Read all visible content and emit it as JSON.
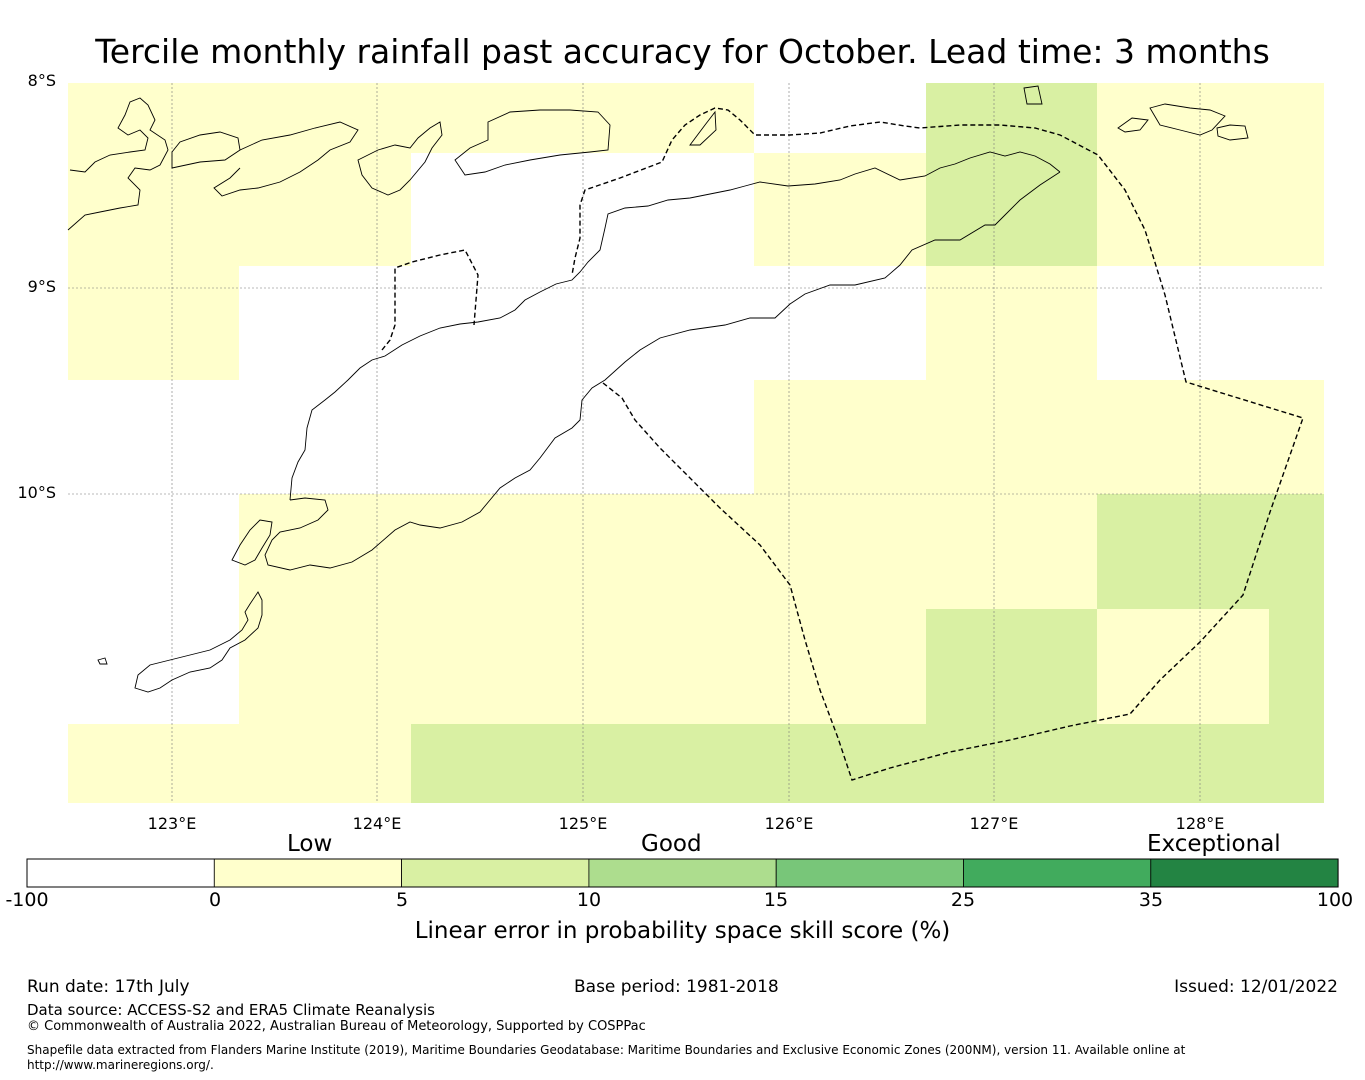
{
  "title": "Tercile monthly rainfall past accuracy for October. Lead time: 3 months",
  "map": {
    "lat_labels": [
      "8°S",
      "9°S",
      "10°S"
    ],
    "lon_labels": [
      "123°E",
      "124°E",
      "125°E",
      "126°E",
      "127°E",
      "128°E"
    ],
    "colors": {
      "low": "#ffffcc",
      "band_5_10": "#d9f0a3",
      "band_10_15": "#addd8e",
      "band_15_25": "#78c679",
      "band_25_35": "#41ab5d",
      "band_35_100": "#238443",
      "no_skill": "#ffffff"
    }
  },
  "colorbar": {
    "category_labels": [
      "Low",
      "Good",
      "Exceptional"
    ],
    "ticks": [
      "-100",
      "0",
      "5",
      "10",
      "15",
      "25",
      "35",
      "100"
    ],
    "title": "Linear error in probability space skill score (%)"
  },
  "footer": {
    "run_date": "Run date: 17th July",
    "base_period": "Base period: 1981-2018",
    "issued": "Issued: 12/01/2022",
    "data_source": "Data source: ACCESS-S2 and ERA5 Climate Reanalysis",
    "copyright": "© Commonwealth of Australia 2022, Australian Bureau of Meteorology, Supported by COSPPac",
    "shapefile_line1": "Shapefile data extracted from Flanders Marine Institute (2019), Maritime Boundaries Geodatabase: Maritime Boundaries and Exclusive Economic Zones (200NM), version 11. Available online at",
    "shapefile_line2": "http://www.marineregions.org/."
  }
}
